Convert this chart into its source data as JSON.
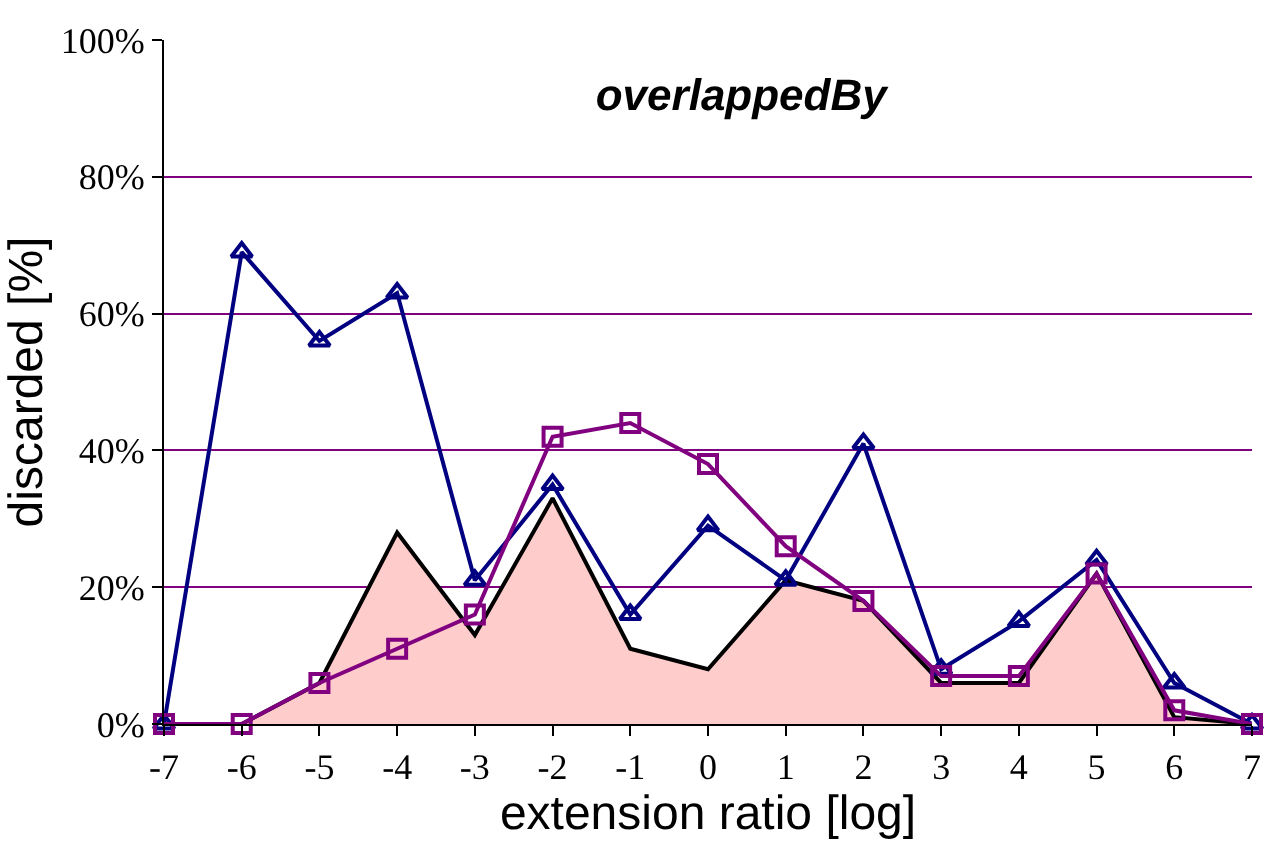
{
  "chart_data": {
    "type": "line",
    "title": "overlappedBy",
    "xlabel": "extension ratio [log]",
    "ylabel": "discarded [%]",
    "x": [
      -7,
      -6,
      -5,
      -4,
      -3,
      -2,
      -1,
      0,
      1,
      2,
      3,
      4,
      5,
      6,
      7
    ],
    "series": [
      {
        "type": "area",
        "color": "#ffcccc",
        "marker": "none",
        "values": [
          0,
          0,
          6,
          28,
          13,
          33,
          11,
          8,
          21,
          18,
          6,
          6,
          22,
          1,
          0
        ]
      },
      {
        "color": "#000080",
        "marker": "triangle",
        "values": [
          0,
          69,
          56,
          63,
          21,
          35,
          16,
          29,
          21,
          41,
          8,
          15,
          24,
          6,
          0
        ]
      },
      {
        "color": "#800080",
        "marker": "square",
        "values": [
          0,
          0,
          6,
          11,
          16,
          42,
          44,
          38,
          26,
          18,
          7,
          7,
          22,
          2,
          0
        ]
      }
    ],
    "xlim": [
      -7,
      7
    ],
    "xticks": [
      -7,
      -6,
      -5,
      -4,
      -3,
      -2,
      -1,
      0,
      1,
      2,
      3,
      4,
      5,
      6,
      7
    ],
    "ylim": [
      0,
      100
    ],
    "yticks": [
      {
        "value": 0,
        "label": "0%"
      },
      {
        "value": 20,
        "label": "20%"
      },
      {
        "value": 40,
        "label": "40%"
      },
      {
        "value": 60,
        "label": "60%"
      },
      {
        "value": 80,
        "label": "80%"
      },
      {
        "value": 100,
        "label": "100%"
      }
    ],
    "grid": "y",
    "legend": false
  }
}
